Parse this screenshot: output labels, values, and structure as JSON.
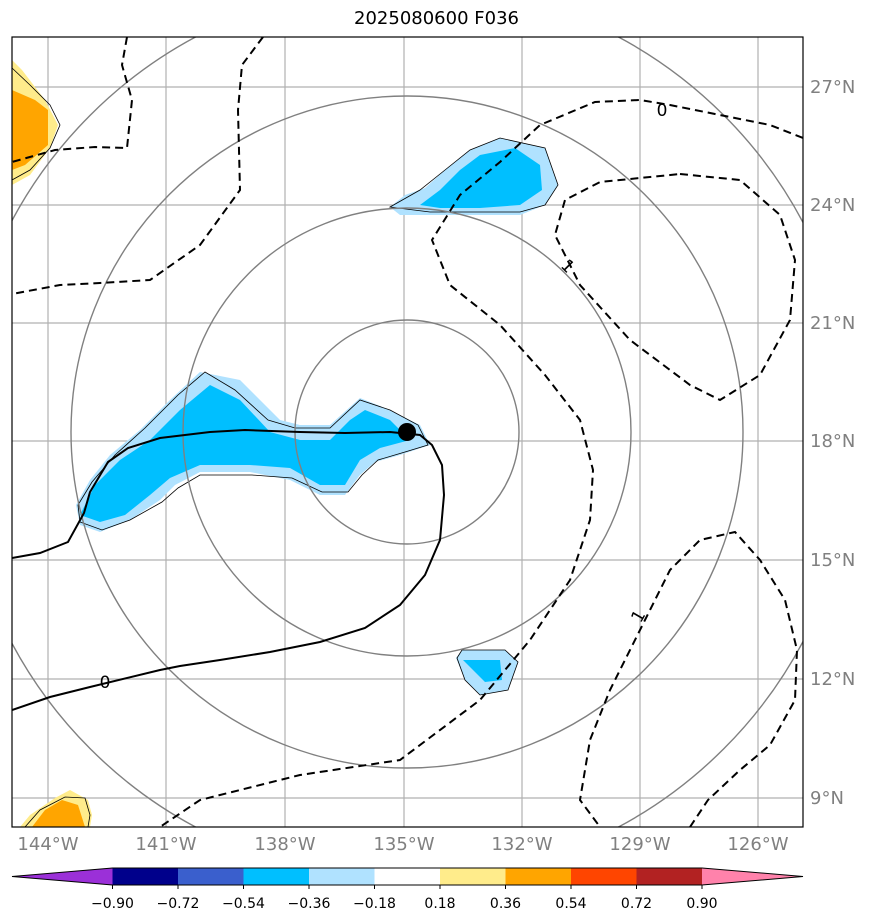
{
  "title": "2025080600 F036",
  "lon_ticks": [
    "144°W",
    "141°W",
    "138°W",
    "135°W",
    "132°W",
    "129°W",
    "126°W"
  ],
  "lat_ticks": [
    "27°N",
    "24°N",
    "21°N",
    "18°N",
    "15°N",
    "12°N",
    "9°N"
  ],
  "contour_labels": [
    "0",
    "1",
    "1",
    "0"
  ],
  "colorbar": {
    "ticks": [
      "−0.90",
      "−0.72",
      "−0.54",
      "−0.36",
      "−0.18",
      "0.18",
      "0.36",
      "0.54",
      "0.72",
      "0.90"
    ],
    "colors": [
      "#9b30d8",
      "#00008b",
      "#3a5fcd",
      "#00bfff",
      "#b0e2ff",
      "#ffffff",
      "#ffec8b",
      "#ffa500",
      "#ff4500",
      "#b22222",
      "#ff82ab"
    ]
  },
  "storm_center": {
    "lon": "135°W",
    "lat": "18°N"
  }
}
